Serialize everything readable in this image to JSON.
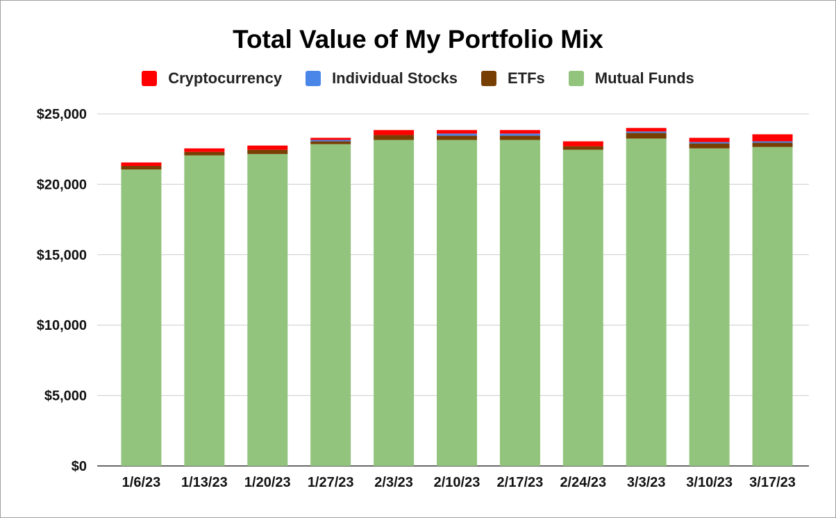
{
  "chart_data": {
    "type": "bar",
    "stacked": true,
    "title": "Total Value of My Portfolio Mix",
    "xlabel": "",
    "ylabel": "",
    "categories": [
      "1/6/23",
      "1/13/23",
      "1/20/23",
      "1/27/23",
      "2/3/23",
      "2/10/23",
      "2/17/23",
      "2/24/23",
      "3/3/23",
      "3/10/23",
      "3/17/23"
    ],
    "ylim": [
      0,
      25000
    ],
    "yticks": [
      0,
      5000,
      10000,
      15000,
      20000,
      25000
    ],
    "ytick_labels": [
      "$0",
      "$5,000",
      "$10,000",
      "$15,000",
      "$20,000",
      "$25,000"
    ],
    "grid": true,
    "legend_position": "top",
    "series": [
      {
        "name": "Mutual Funds",
        "color": "#93c47d",
        "values": [
          21050,
          22050,
          22150,
          22850,
          23150,
          23150,
          23150,
          22450,
          23250,
          22550,
          22650
        ]
      },
      {
        "name": "ETFs",
        "color": "#783f04",
        "values": [
          250,
          250,
          300,
          200,
          350,
          300,
          300,
          250,
          400,
          350,
          300
        ]
      },
      {
        "name": "Individual Stocks",
        "color": "#4a86e8",
        "values": [
          0,
          0,
          0,
          100,
          0,
          150,
          150,
          0,
          100,
          100,
          100
        ]
      },
      {
        "name": "Cryptocurrency",
        "color": "#ff0000",
        "values": [
          250,
          250,
          300,
          150,
          350,
          250,
          250,
          350,
          250,
          300,
          500
        ]
      }
    ],
    "legend_order": [
      "Cryptocurrency",
      "Individual Stocks",
      "ETFs",
      "Mutual Funds"
    ]
  }
}
